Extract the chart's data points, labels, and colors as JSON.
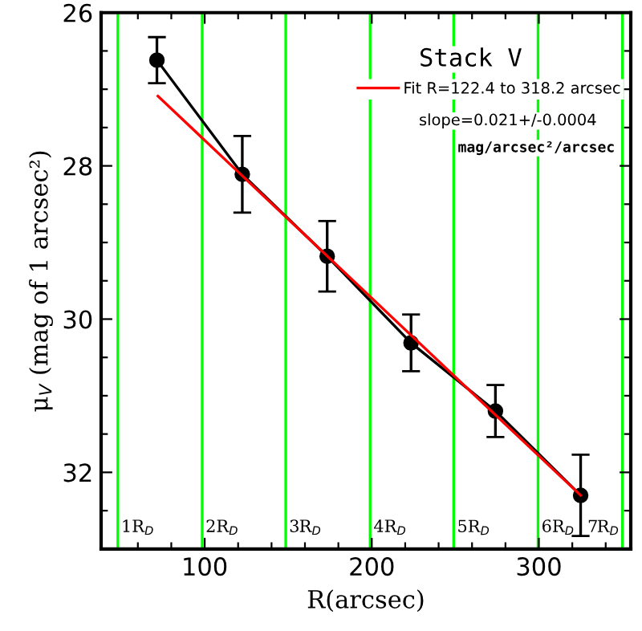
{
  "chart_data": {
    "type": "line",
    "title": "Stack V",
    "xlabel": "R(arcsec)",
    "ylabel": "μ$_{V}$ (mag of 1 arcsec²)",
    "xlim": [
      38,
      355
    ],
    "ylim": [
      33,
      26
    ],
    "xticks": [
      {
        "value": 60,
        "label": null
      },
      {
        "value": 80,
        "label": null
      },
      100,
      {
        "value": 120,
        "label": null
      },
      {
        "value": 140,
        "label": null
      },
      {
        "value": 160,
        "label": null
      },
      {
        "value": 180,
        "label": null
      },
      200,
      {
        "value": 220,
        "label": null
      },
      {
        "value": 240,
        "label": null
      },
      {
        "value": 260,
        "label": null
      },
      {
        "value": 280,
        "label": null
      },
      300,
      {
        "value": 320,
        "label": null
      },
      {
        "value": 340,
        "label": null
      }
    ],
    "yticks": [
      26,
      {
        "value": 26.5,
        "label": null
      },
      {
        "value": 27,
        "label": null
      },
      {
        "value": 27.5,
        "label": null
      },
      28,
      {
        "value": 28.5,
        "label": null
      },
      {
        "value": 29,
        "label": null
      },
      {
        "value": 29.5,
        "label": null
      },
      30,
      {
        "value": 30.5,
        "label": null
      },
      {
        "value": 31,
        "label": null
      },
      {
        "value": 31.5,
        "label": null
      },
      32,
      {
        "value": 32.5,
        "label": null
      }
    ],
    "series": [
      {
        "color": "#000000",
        "marker": "circle",
        "x": [
          71.4,
          122.5,
          173.3,
          223.5,
          274,
          325
        ],
        "values": [
          26.62,
          28.11,
          29.18,
          30.31,
          31.2,
          32.3
        ],
        "errors": [
          0.3,
          0.5,
          0.46,
          0.37,
          0.34,
          0.53
        ]
      },
      {
        "name": "Fit R=122.4 to 318.2 arcsec",
        "color": "#ff0000",
        "x": [
          72,
          325
        ],
        "values": [
          27.09,
          32.3
        ]
      }
    ],
    "ref_lines": [
      {
        "axis": "x",
        "value": 48,
        "label": "1R$_{D}$",
        "color": "#00ff00"
      },
      {
        "axis": "x",
        "value": 98.5,
        "label": "2R$_{D}$",
        "color": "#00ff00"
      },
      {
        "axis": "x",
        "value": 148.5,
        "label": "3R$_{D}$",
        "color": "#00ff00"
      },
      {
        "axis": "x",
        "value": 199,
        "label": "4R$_{D}$",
        "color": "#00ff00"
      },
      {
        "axis": "x",
        "value": 249,
        "label": "5R$_{D}$",
        "color": "#00ff00"
      },
      {
        "axis": "x",
        "value": 299.5,
        "label": "6R$_{D}$",
        "color": "#00ff00"
      },
      {
        "axis": "x",
        "value": 350,
        "label": "7R$_{D}$",
        "color": "#00ff00"
      }
    ],
    "annotations": [
      "slope=0.021+/-0.0004",
      "mag/arcsec²/arcsec"
    ],
    "legend": "top right",
    "grid": false,
    "line_style": "solid"
  }
}
